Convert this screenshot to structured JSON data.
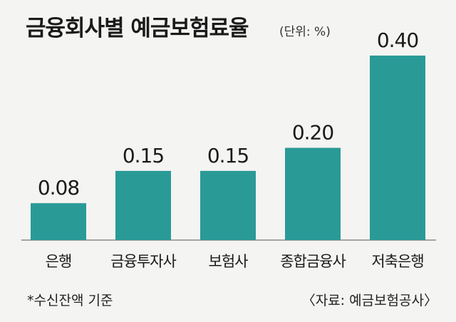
{
  "chart_data": {
    "type": "bar",
    "title": "금융회사별 예금보험료율",
    "unit": "(단위: %)",
    "categories": [
      "은행",
      "금융투자사",
      "보험사",
      "종합금융사",
      "저축은행"
    ],
    "values": [
      0.08,
      0.15,
      0.15,
      0.2,
      0.4
    ],
    "value_labels": [
      "0.08",
      "0.15",
      "0.15",
      "0.20",
      "0.40"
    ],
    "bar_color": "#2a9a97",
    "ylim": [
      0,
      0.4
    ],
    "grid": false,
    "legend": "none"
  },
  "footnote": "*수신잔액 기준",
  "source": "〈자료: 예금보험공사〉"
}
